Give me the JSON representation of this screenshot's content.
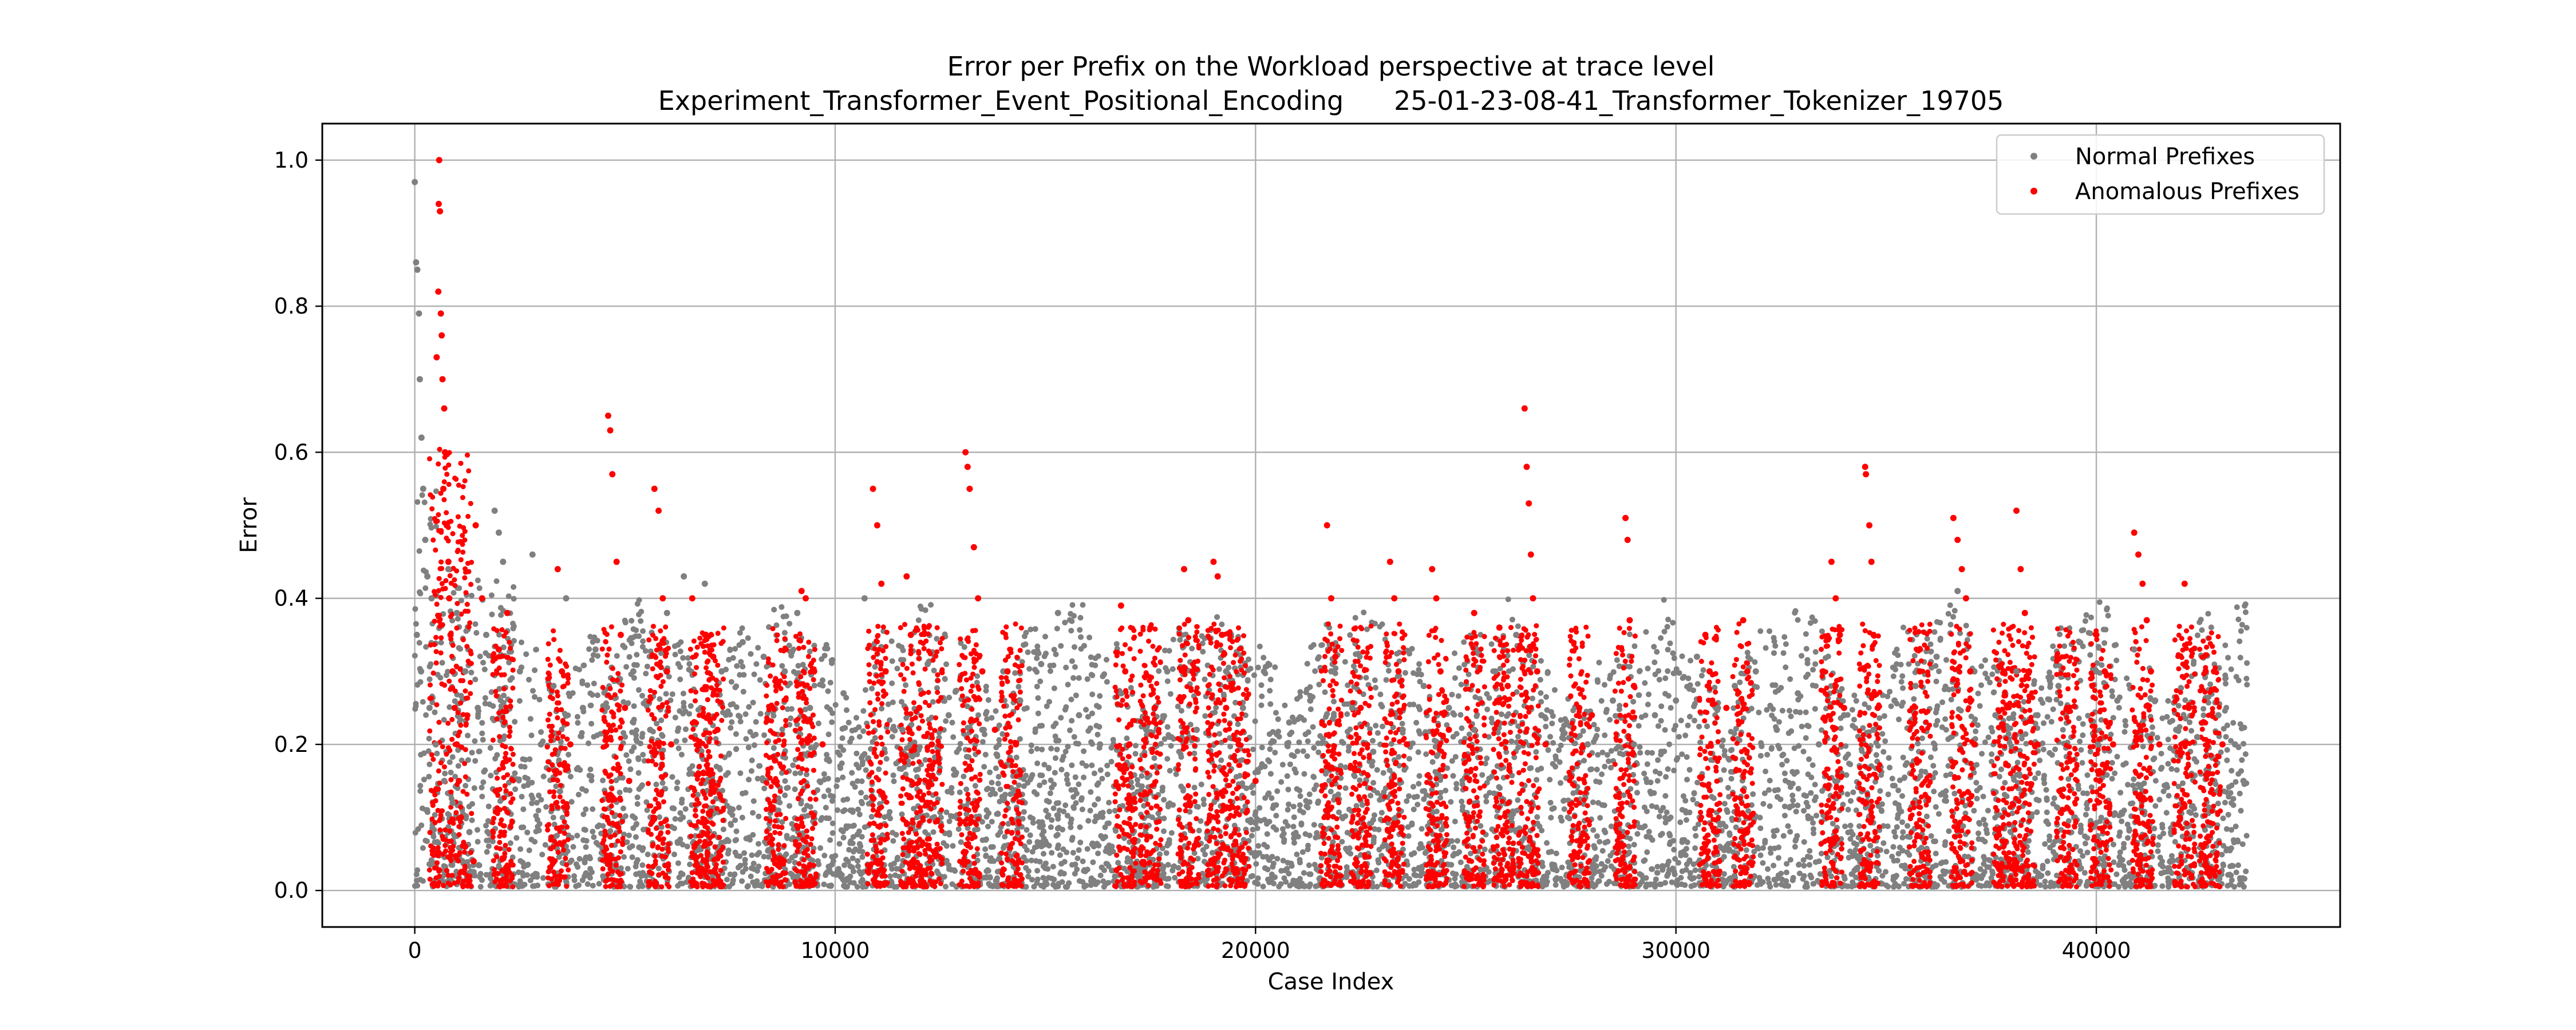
{
  "chart_data": {
    "type": "scatter",
    "title": "Error per Prefix on the Workload perspective at trace level",
    "subtitle": "Experiment_Transformer_Event_Positional_Encoding      25-01-23-08-41_Transformer_Tokenizer_19705",
    "xlabel": "Case Index",
    "ylabel": "Error",
    "xlim": [
      -2200,
      45800
    ],
    "ylim": [
      -0.05,
      1.05
    ],
    "x_ticks": [
      0,
      10000,
      20000,
      30000,
      40000
    ],
    "x_tick_labels": [
      "0",
      "10000",
      "20000",
      "30000",
      "40000"
    ],
    "y_ticks": [
      0.0,
      0.2,
      0.4,
      0.6,
      0.8,
      1.0
    ],
    "y_tick_labels": [
      "0.0",
      "0.2",
      "0.4",
      "0.6",
      "0.8",
      "1.0"
    ],
    "grid": true,
    "legend_position": "top-right",
    "series": [
      {
        "name": "Normal Prefixes",
        "color": "#808080",
        "points": [
          [
            0,
            0.97
          ],
          [
            30,
            0.86
          ],
          [
            60,
            0.85
          ],
          [
            100,
            0.79
          ],
          [
            120,
            0.7
          ],
          [
            160,
            0.62
          ],
          [
            200,
            0.55
          ],
          [
            250,
            0.48
          ],
          [
            300,
            0.43
          ],
          [
            400,
            0.4
          ],
          [
            50,
            0.35
          ],
          [
            150,
            0.3
          ],
          [
            350,
            0.25
          ],
          [
            500,
            0.2
          ],
          [
            700,
            0.15
          ],
          [
            900,
            0.12
          ],
          [
            1100,
            0.1
          ],
          [
            1300,
            0.08
          ],
          [
            800,
            0.44
          ],
          [
            1000,
            0.38
          ],
          [
            1200,
            0.3
          ],
          [
            1500,
            0.25
          ],
          [
            1700,
            0.35
          ],
          [
            1900,
            0.52
          ],
          [
            2000,
            0.49
          ],
          [
            2100,
            0.45
          ],
          [
            2500,
            0.3
          ],
          [
            2800,
            0.46
          ],
          [
            3000,
            0.2
          ],
          [
            3300,
            0.28
          ],
          [
            3600,
            0.4
          ],
          [
            4000,
            0.25
          ],
          [
            4300,
            0.33
          ],
          [
            5200,
            0.3
          ],
          [
            5600,
            0.22
          ],
          [
            6000,
            0.38
          ],
          [
            6400,
            0.43
          ],
          [
            6900,
            0.42
          ],
          [
            7300,
            0.3
          ],
          [
            7800,
            0.34
          ],
          [
            8300,
            0.32
          ],
          [
            8800,
            0.3
          ],
          [
            9100,
            0.38
          ],
          [
            9400,
            0.25
          ],
          [
            10200,
            0.27
          ],
          [
            10700,
            0.4
          ],
          [
            11200,
            0.3
          ],
          [
            11600,
            0.22
          ],
          [
            12200,
            0.31
          ],
          [
            12700,
            0.24
          ],
          [
            13500,
            0.22
          ],
          [
            14000,
            0.3
          ],
          [
            14400,
            0.26
          ],
          [
            14900,
            0.31
          ],
          [
            15300,
            0.38
          ],
          [
            15800,
            0.24
          ],
          [
            16300,
            0.2
          ],
          [
            16800,
            0.27
          ],
          [
            17400,
            0.22
          ],
          [
            17900,
            0.3
          ],
          [
            18600,
            0.22
          ],
          [
            19300,
            0.3
          ],
          [
            19700,
            0.25
          ],
          [
            20200,
            0.3
          ],
          [
            20800,
            0.23
          ],
          [
            21300,
            0.26
          ],
          [
            21800,
            0.3
          ],
          [
            22300,
            0.25
          ],
          [
            22800,
            0.19
          ],
          [
            23500,
            0.22
          ],
          [
            24000,
            0.28
          ],
          [
            24600,
            0.25
          ],
          [
            25200,
            0.22
          ],
          [
            25700,
            0.3
          ],
          [
            26200,
            0.35
          ],
          [
            26800,
            0.24
          ],
          [
            27300,
            0.22
          ],
          [
            27900,
            0.2
          ],
          [
            28500,
            0.26
          ],
          [
            29000,
            0.2
          ],
          [
            29500,
            0.24
          ],
          [
            30000,
            0.26
          ],
          [
            30500,
            0.32
          ],
          [
            31000,
            0.25
          ],
          [
            31400,
            0.28
          ],
          [
            31900,
            0.3
          ],
          [
            32400,
            0.22
          ],
          [
            32900,
            0.27
          ],
          [
            33400,
            0.2
          ],
          [
            34000,
            0.24
          ],
          [
            34700,
            0.22
          ],
          [
            35200,
            0.26
          ],
          [
            35700,
            0.28
          ],
          [
            36200,
            0.32
          ],
          [
            36700,
            0.41
          ],
          [
            37100,
            0.3
          ],
          [
            37600,
            0.24
          ],
          [
            38100,
            0.3
          ],
          [
            38600,
            0.24
          ],
          [
            39100,
            0.28
          ],
          [
            39600,
            0.34
          ],
          [
            40000,
            0.3
          ],
          [
            40500,
            0.26
          ],
          [
            40900,
            0.33
          ],
          [
            41400,
            0.26
          ],
          [
            41900,
            0.22
          ],
          [
            42400,
            0.21
          ],
          [
            42900,
            0.24
          ],
          [
            43300,
            0.2
          ],
          [
            43500,
            0.15
          ]
        ]
      },
      {
        "name": "Anomalous Prefixes",
        "color": "#ff0000",
        "points": [
          [
            580,
            1.0
          ],
          [
            570,
            0.94
          ],
          [
            600,
            0.93
          ],
          [
            560,
            0.82
          ],
          [
            620,
            0.79
          ],
          [
            640,
            0.76
          ],
          [
            520,
            0.73
          ],
          [
            660,
            0.7
          ],
          [
            700,
            0.66
          ],
          [
            720,
            0.6
          ],
          [
            680,
            0.55
          ],
          [
            760,
            0.5
          ],
          [
            800,
            0.45
          ],
          [
            820,
            0.4
          ],
          [
            850,
            0.35
          ],
          [
            900,
            0.3
          ],
          [
            950,
            0.25
          ],
          [
            1000,
            0.2
          ],
          [
            1050,
            0.15
          ],
          [
            1100,
            0.1
          ],
          [
            1200,
            0.06
          ],
          [
            1400,
            0.04
          ],
          [
            1450,
            0.5
          ],
          [
            1600,
            0.4
          ],
          [
            2000,
            0.33
          ],
          [
            2200,
            0.38
          ],
          [
            3400,
            0.44
          ],
          [
            3500,
            0.3
          ],
          [
            3700,
            0.2
          ],
          [
            4600,
            0.65
          ],
          [
            4650,
            0.63
          ],
          [
            4700,
            0.57
          ],
          [
            4800,
            0.45
          ],
          [
            4900,
            0.35
          ],
          [
            5000,
            0.25
          ],
          [
            5100,
            0.15
          ],
          [
            5700,
            0.55
          ],
          [
            5800,
            0.52
          ],
          [
            5900,
            0.4
          ],
          [
            6000,
            0.3
          ],
          [
            6100,
            0.2
          ],
          [
            6600,
            0.4
          ],
          [
            7100,
            0.32
          ],
          [
            7200,
            0.22
          ],
          [
            8600,
            0.28
          ],
          [
            9200,
            0.41
          ],
          [
            9300,
            0.4
          ],
          [
            9500,
            0.3
          ],
          [
            9700,
            0.2
          ],
          [
            10900,
            0.55
          ],
          [
            11000,
            0.5
          ],
          [
            11100,
            0.42
          ],
          [
            11200,
            0.3
          ],
          [
            11700,
            0.43
          ],
          [
            11800,
            0.35
          ],
          [
            12000,
            0.25
          ],
          [
            12300,
            0.2
          ],
          [
            13100,
            0.6
          ],
          [
            13150,
            0.58
          ],
          [
            13200,
            0.55
          ],
          [
            13300,
            0.47
          ],
          [
            13400,
            0.4
          ],
          [
            13500,
            0.3
          ],
          [
            13800,
            0.22
          ],
          [
            14100,
            0.3
          ],
          [
            14300,
            0.2
          ],
          [
            16800,
            0.39
          ],
          [
            16900,
            0.3
          ],
          [
            17000,
            0.2
          ],
          [
            17500,
            0.36
          ],
          [
            17600,
            0.25
          ],
          [
            18300,
            0.44
          ],
          [
            18400,
            0.37
          ],
          [
            18500,
            0.3
          ],
          [
            19000,
            0.45
          ],
          [
            19100,
            0.43
          ],
          [
            19200,
            0.35
          ],
          [
            19300,
            0.25
          ],
          [
            19600,
            0.2
          ],
          [
            20000,
            0.15
          ],
          [
            21700,
            0.5
          ],
          [
            21800,
            0.4
          ],
          [
            21900,
            0.32
          ],
          [
            22500,
            0.25
          ],
          [
            23200,
            0.45
          ],
          [
            23300,
            0.4
          ],
          [
            23400,
            0.3
          ],
          [
            23600,
            0.2
          ],
          [
            24200,
            0.44
          ],
          [
            24300,
            0.4
          ],
          [
            24400,
            0.3
          ],
          [
            24600,
            0.22
          ],
          [
            25200,
            0.38
          ],
          [
            25800,
            0.36
          ],
          [
            26000,
            0.28
          ],
          [
            26400,
            0.66
          ],
          [
            26450,
            0.58
          ],
          [
            26500,
            0.53
          ],
          [
            26550,
            0.46
          ],
          [
            26600,
            0.4
          ],
          [
            26700,
            0.3
          ],
          [
            26900,
            0.2
          ],
          [
            27700,
            0.25
          ],
          [
            28000,
            0.24
          ],
          [
            28800,
            0.51
          ],
          [
            28850,
            0.48
          ],
          [
            28900,
            0.37
          ],
          [
            29000,
            0.28
          ],
          [
            30700,
            0.35
          ],
          [
            30800,
            0.3
          ],
          [
            31200,
            0.25
          ],
          [
            31600,
            0.37
          ],
          [
            31700,
            0.3
          ],
          [
            33500,
            0.3
          ],
          [
            33700,
            0.45
          ],
          [
            33800,
            0.4
          ],
          [
            33900,
            0.35
          ],
          [
            34000,
            0.25
          ],
          [
            34500,
            0.58
          ],
          [
            34520,
            0.57
          ],
          [
            34600,
            0.5
          ],
          [
            34650,
            0.45
          ],
          [
            34700,
            0.35
          ],
          [
            34800,
            0.25
          ],
          [
            35800,
            0.3
          ],
          [
            36600,
            0.51
          ],
          [
            36700,
            0.48
          ],
          [
            36800,
            0.44
          ],
          [
            36900,
            0.4
          ],
          [
            37000,
            0.3
          ],
          [
            37100,
            0.2
          ],
          [
            37800,
            0.3
          ],
          [
            38100,
            0.52
          ],
          [
            38200,
            0.44
          ],
          [
            38300,
            0.38
          ],
          [
            38400,
            0.3
          ],
          [
            38600,
            0.2
          ],
          [
            39300,
            0.25
          ],
          [
            40000,
            0.35
          ],
          [
            40200,
            0.3
          ],
          [
            40400,
            0.2
          ],
          [
            40900,
            0.49
          ],
          [
            41000,
            0.46
          ],
          [
            41100,
            0.42
          ],
          [
            41200,
            0.37
          ],
          [
            41300,
            0.3
          ],
          [
            41500,
            0.2
          ],
          [
            42100,
            0.42
          ],
          [
            42200,
            0.25
          ],
          [
            42600,
            0.3
          ],
          [
            42800,
            0.3
          ],
          [
            43000,
            0.2
          ]
        ]
      }
    ]
  }
}
